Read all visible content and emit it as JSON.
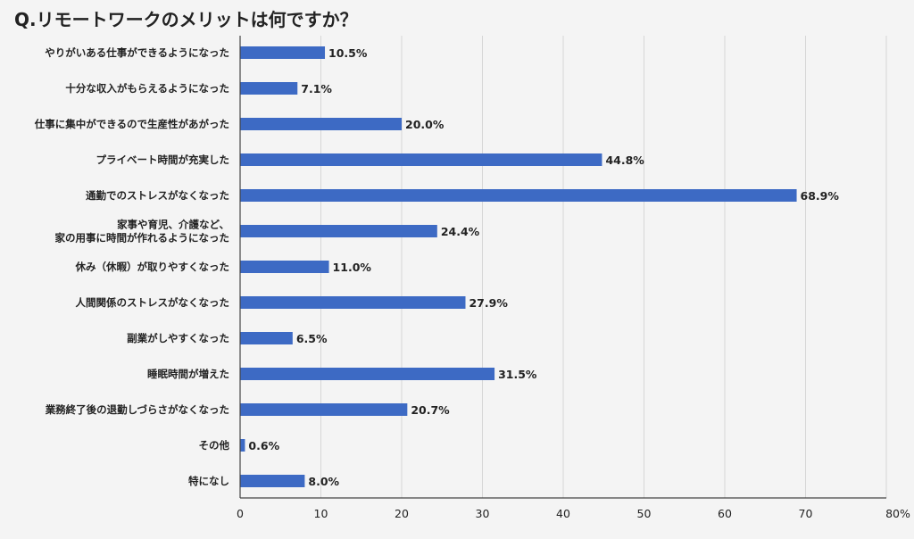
{
  "chart_data": {
    "type": "bar",
    "orientation": "horizontal",
    "title": "Q.リモートワークのメリットは何ですか？",
    "categories": [
      [
        "やりがいある仕事ができるようになった"
      ],
      [
        "十分な収入がもらえるようになった"
      ],
      [
        "仕事に集中ができるので生産性があがった"
      ],
      [
        "プライベート時間が充実した"
      ],
      [
        "通勤でのストレスがなくなった"
      ],
      [
        "家事や育児、介護など、",
        "家の用事に時間が作れるようになった"
      ],
      [
        "休み（休暇）が取りやすくなった"
      ],
      [
        "人間関係のストレスがなくなった"
      ],
      [
        "副業がしやすくなった"
      ],
      [
        "睡眠時間が増えた"
      ],
      [
        "業務終了後の退勤しづらさがなくなった"
      ],
      [
        "その他"
      ],
      [
        "特になし"
      ]
    ],
    "values": [
      10.5,
      7.1,
      20.0,
      44.8,
      68.9,
      24.4,
      11.0,
      27.9,
      6.5,
      31.5,
      20.7,
      0.6,
      8.0
    ],
    "value_labels": [
      "10.5%",
      "7.1%",
      "20.0%",
      "44.8%",
      "68.9%",
      "24.4%",
      "11.0%",
      "27.9%",
      "6.5%",
      "31.5%",
      "20.7%",
      "0.6%",
      "8.0%"
    ],
    "xlim": [
      0,
      80
    ],
    "xticks": [
      0,
      10,
      20,
      30,
      40,
      50,
      60,
      70,
      80
    ],
    "xtick_labels": [
      "0",
      "10",
      "20",
      "30",
      "40",
      "50",
      "60",
      "70",
      "80%"
    ],
    "grid": true,
    "bar_color": "#3d6ac4",
    "grid_color": "#d6d6d6",
    "axis_color": "#444444",
    "background": "#f4f4f4"
  }
}
